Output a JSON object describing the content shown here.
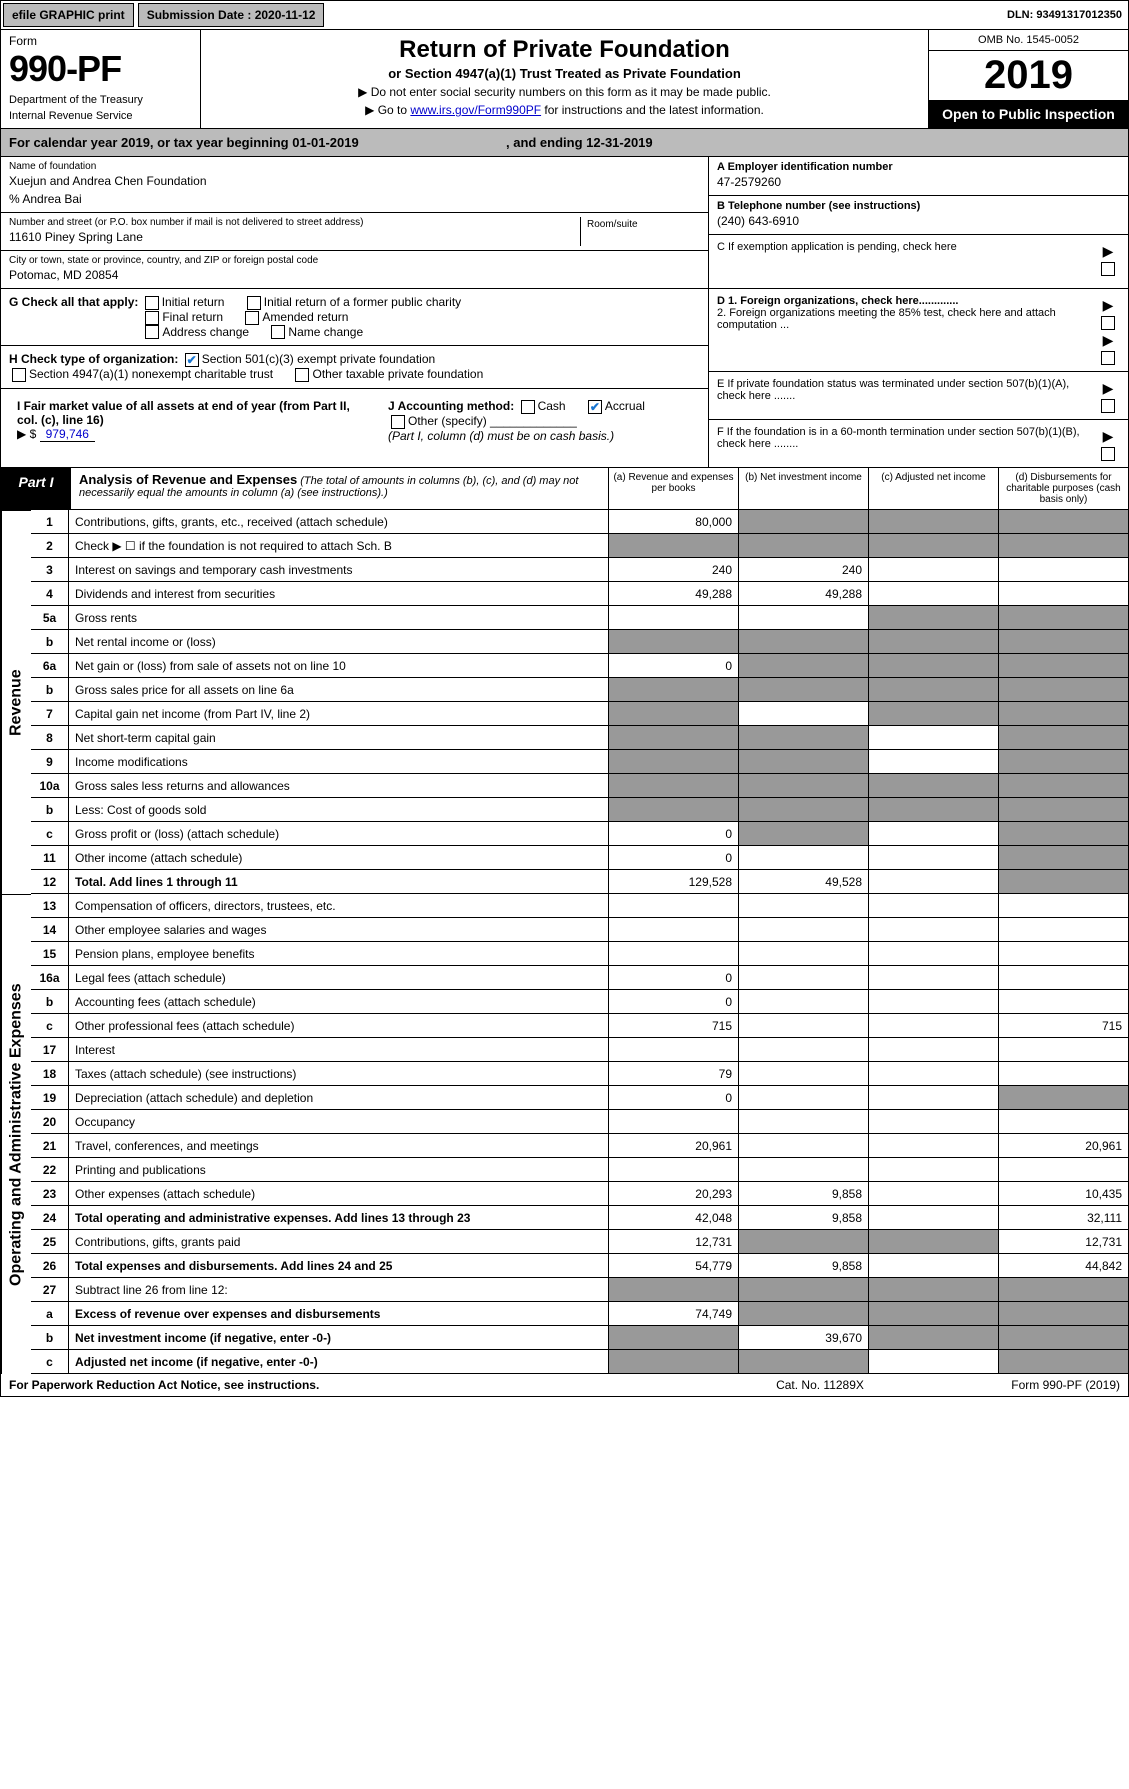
{
  "topbar": {
    "efile": "efile GRAPHIC print",
    "subm_label": "Submission Date : 2020-11-12",
    "dln_label": "DLN: 93491317012350"
  },
  "header": {
    "form_word": "Form",
    "form_num": "990-PF",
    "dept": "Department of the Treasury",
    "irs": "Internal Revenue Service",
    "title": "Return of Private Foundation",
    "subtitle": "or Section 4947(a)(1) Trust Treated as Private Foundation",
    "instr1": "▶ Do not enter social security numbers on this form as it may be made public.",
    "instr2_pre": "▶ Go to ",
    "instr2_link": "www.irs.gov/Form990PF",
    "instr2_post": " for instructions and the latest information.",
    "omb": "OMB No. 1545-0052",
    "year": "2019",
    "otp": "Open to Public Inspection"
  },
  "calyear": {
    "text_pre": "For calendar year 2019, or tax year beginning 01-01-2019",
    "text_mid": ", and ending 12-31-2019"
  },
  "info": {
    "name_label": "Name of foundation",
    "name_val": "Xuejun and Andrea Chen Foundation",
    "care_of": "% Andrea Bai",
    "addr_label": "Number and street (or P.O. box number if mail is not delivered to street address)",
    "addr_val": "11610 Piney Spring Lane",
    "room_label": "Room/suite",
    "city_label": "City or town, state or province, country, and ZIP or foreign postal code",
    "city_val": "Potomac, MD  20854",
    "ein_label": "A Employer identification number",
    "ein_val": "47-2579260",
    "tel_label": "B Telephone number (see instructions)",
    "tel_val": "(240) 643-6910",
    "c_label": "C If exemption application is pending, check here"
  },
  "checks": {
    "g_label": "G Check all that apply:",
    "g1": "Initial return",
    "g2": "Initial return of a former public charity",
    "g3": "Final return",
    "g4": "Amended return",
    "g5": "Address change",
    "g6": "Name change",
    "h_label": "H Check type of organization:",
    "h1": "Section 501(c)(3) exempt private foundation",
    "h2": "Section 4947(a)(1) nonexempt charitable trust",
    "h3": "Other taxable private foundation",
    "i_label": "I Fair market value of all assets at end of year (from Part II, col. (c), line 16)",
    "i_arrow": "▶ $",
    "i_val": "979,746",
    "j_label": "J Accounting method:",
    "j1": "Cash",
    "j2": "Accrual",
    "j3": "Other (specify)",
    "j_note": "(Part I, column (d) must be on cash basis.)",
    "d1_label": "D 1. Foreign organizations, check here.............",
    "d2_label": "2. Foreign organizations meeting the 85% test, check here and attach computation ...",
    "e_label": "E   If private foundation status was terminated under section 507(b)(1)(A), check here .......",
    "f_label": "F   If the foundation is in a 60-month termination under section 507(b)(1)(B), check here ........"
  },
  "part1": {
    "label": "Part I",
    "title": "Analysis of Revenue and Expenses",
    "title_sub": "(The total of amounts in columns (b), (c), and (d) may not necessarily equal the amounts in column (a) (see instructions).)",
    "col_a": "(a)   Revenue and expenses per books",
    "col_b": "(b)   Net investment income",
    "col_c": "(c)   Adjusted net income",
    "col_d": "(d)   Disbursements for charitable purposes (cash basis only)"
  },
  "revenue_label": "Revenue",
  "expenses_label": "Operating and Administrative Expenses",
  "rows": {
    "r1": {
      "n": "1",
      "d": "Contributions, gifts, grants, etc., received (attach schedule)",
      "a": "80,000"
    },
    "r2": {
      "n": "2",
      "d": "Check ▶ ☐ if the foundation is not required to attach Sch. B"
    },
    "r3": {
      "n": "3",
      "d": "Interest on savings and temporary cash investments",
      "a": "240",
      "b": "240"
    },
    "r4": {
      "n": "4",
      "d": "Dividends and interest from securities",
      "a": "49,288",
      "b": "49,288"
    },
    "r5a": {
      "n": "5a",
      "d": "Gross rents"
    },
    "r5b": {
      "n": "b",
      "d": "Net rental income or (loss)"
    },
    "r6a": {
      "n": "6a",
      "d": "Net gain or (loss) from sale of assets not on line 10",
      "a": "0"
    },
    "r6b": {
      "n": "b",
      "d": "Gross sales price for all assets on line 6a"
    },
    "r7": {
      "n": "7",
      "d": "Capital gain net income (from Part IV, line 2)"
    },
    "r8": {
      "n": "8",
      "d": "Net short-term capital gain"
    },
    "r9": {
      "n": "9",
      "d": "Income modifications"
    },
    "r10a": {
      "n": "10a",
      "d": "Gross sales less returns and allowances"
    },
    "r10b": {
      "n": "b",
      "d": "Less: Cost of goods sold"
    },
    "r10c": {
      "n": "c",
      "d": "Gross profit or (loss) (attach schedule)",
      "a": "0"
    },
    "r11": {
      "n": "11",
      "d": "Other income (attach schedule)",
      "a": "0"
    },
    "r12": {
      "n": "12",
      "d": "Total. Add lines 1 through 11",
      "a": "129,528",
      "b": "49,528"
    },
    "r13": {
      "n": "13",
      "d": "Compensation of officers, directors, trustees, etc."
    },
    "r14": {
      "n": "14",
      "d": "Other employee salaries and wages"
    },
    "r15": {
      "n": "15",
      "d": "Pension plans, employee benefits"
    },
    "r16a": {
      "n": "16a",
      "d": "Legal fees (attach schedule)",
      "a": "0"
    },
    "r16b": {
      "n": "b",
      "d": "Accounting fees (attach schedule)",
      "a": "0"
    },
    "r16c": {
      "n": "c",
      "d": "Other professional fees (attach schedule)",
      "a": "715",
      "dd": "715"
    },
    "r17": {
      "n": "17",
      "d": "Interest"
    },
    "r18": {
      "n": "18",
      "d": "Taxes (attach schedule) (see instructions)",
      "a": "79"
    },
    "r19": {
      "n": "19",
      "d": "Depreciation (attach schedule) and depletion",
      "a": "0"
    },
    "r20": {
      "n": "20",
      "d": "Occupancy"
    },
    "r21": {
      "n": "21",
      "d": "Travel, conferences, and meetings",
      "a": "20,961",
      "dd": "20,961"
    },
    "r22": {
      "n": "22",
      "d": "Printing and publications"
    },
    "r23": {
      "n": "23",
      "d": "Other expenses (attach schedule)",
      "a": "20,293",
      "b": "9,858",
      "dd": "10,435"
    },
    "r24": {
      "n": "24",
      "d": "Total operating and administrative expenses. Add lines 13 through 23",
      "a": "42,048",
      "b": "9,858",
      "dd": "32,111"
    },
    "r25": {
      "n": "25",
      "d": "Contributions, gifts, grants paid",
      "a": "12,731",
      "dd": "12,731"
    },
    "r26": {
      "n": "26",
      "d": "Total expenses and disbursements. Add lines 24 and 25",
      "a": "54,779",
      "b": "9,858",
      "dd": "44,842"
    },
    "r27": {
      "n": "27",
      "d": "Subtract line 26 from line 12:"
    },
    "r27a": {
      "n": "a",
      "d": "Excess of revenue over expenses and disbursements",
      "a": "74,749"
    },
    "r27b": {
      "n": "b",
      "d": "Net investment income (if negative, enter -0-)",
      "b": "39,670"
    },
    "r27c": {
      "n": "c",
      "d": "Adjusted net income (if negative, enter -0-)"
    }
  },
  "footer": {
    "left": "For Paperwork Reduction Act Notice, see instructions.",
    "mid": "Cat. No. 11289X",
    "right": "Form 990-PF (2019)"
  }
}
